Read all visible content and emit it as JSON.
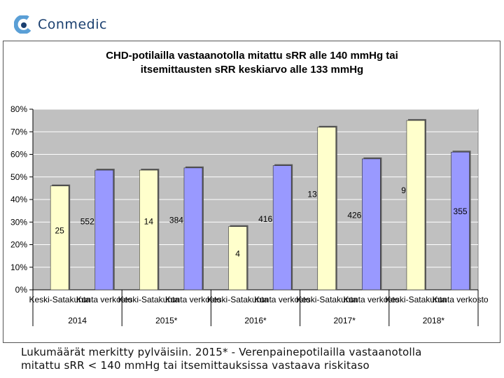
{
  "logo": {
    "text": "Conmedic",
    "icon": "conmedic-logo-icon"
  },
  "footnote": {
    "line1": "Lukumäärät merkitty pylväisiin. 2015* -  Verenpainepotilailla vastaanotolla",
    "line2": "mitattu sRR < 140 mmHg tai itsemittauksissa vastaava riskitaso"
  },
  "colors": {
    "keski": "#ffffcc",
    "kunta": "#9999ff",
    "plot_bg": "#c0c0c0",
    "grid": "#ffffff"
  },
  "chart_data": {
    "type": "bar",
    "title_lines": [
      "CHD-potilailla vastaanotolla mitattu sRR alle 140 mmHg tai",
      "itsemittausten sRR keskiarvo alle 133 mmHg"
    ],
    "ylim": [
      0,
      80
    ],
    "yticks": [
      "0%",
      "10%",
      "20%",
      "30%",
      "40%",
      "50%",
      "60%",
      "70%",
      "80%"
    ],
    "legend": "none",
    "grid": true,
    "groups": [
      {
        "year": "2014",
        "bars": [
          {
            "category": "Keski-Satakunta",
            "series": "keski",
            "value": 46,
            "label": "25"
          },
          {
            "category": "Kunta verkosto",
            "series": "kunta",
            "value": 53,
            "label": "552"
          }
        ]
      },
      {
        "year": "2015*",
        "bars": [
          {
            "category": "Keski-Satakunta",
            "series": "keski",
            "value": 53,
            "label": "14"
          },
          {
            "category": "Kunta verkosto",
            "series": "kunta",
            "value": 54,
            "label": "384"
          }
        ]
      },
      {
        "year": "2016*",
        "bars": [
          {
            "category": "Keski-Satakunta",
            "series": "keski",
            "value": 28,
            "label": "4"
          },
          {
            "category": "Kunta verkosto",
            "series": "kunta",
            "value": 55,
            "label": "416"
          }
        ]
      },
      {
        "year": "2017*",
        "bars": [
          {
            "category": "Keski-Satakunta",
            "series": "keski",
            "value": 72,
            "label": "13"
          },
          {
            "category": "Kunta verkosto",
            "series": "kunta",
            "value": 58,
            "label": "426"
          }
        ]
      },
      {
        "year": "2018*",
        "bars": [
          {
            "category": "Keski-Satakunta",
            "series": "keski",
            "value": 75,
            "label": "9"
          },
          {
            "category": "Kunta verkosto",
            "series": "kunta",
            "value": 61,
            "label": "355"
          }
        ]
      }
    ]
  }
}
